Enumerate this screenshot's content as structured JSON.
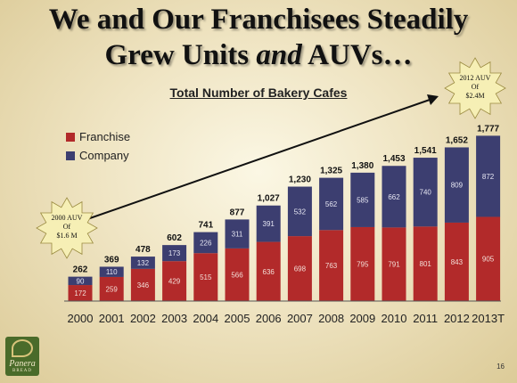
{
  "title_line1": "We and Our Franchisees Steadily",
  "title_line2_a": "Grew Units ",
  "title_line2_b": "and",
  "title_line2_c": " AUVs…",
  "chart_title": "Total Number of Bakery Cafes",
  "page_number": "16",
  "logo": {
    "brand": "Panera",
    "sub": "BREAD"
  },
  "colors": {
    "franchise": "#b22a2a",
    "company": "#3c3e70",
    "starburst": "#f6efb5"
  },
  "chart_data": {
    "type": "bar",
    "stacked": true,
    "title": "Total Number of Bakery Cafes",
    "categories": [
      "2000",
      "2001",
      "2002",
      "2003",
      "2004",
      "2005",
      "2006",
      "2007",
      "2008",
      "2009",
      "2010",
      "2011",
      "2012",
      "2013T"
    ],
    "series": [
      {
        "name": "Franchise",
        "values": [
          172,
          259,
          346,
          429,
          515,
          566,
          636,
          698,
          763,
          795,
          791,
          801,
          843,
          905
        ]
      },
      {
        "name": "Company",
        "values": [
          90,
          110,
          132,
          173,
          226,
          311,
          391,
          532,
          562,
          585,
          662,
          740,
          809,
          872
        ]
      }
    ],
    "totals": [
      "262",
      "369",
      "478",
      "602",
      "741",
      "877",
      "1,027",
      "1,230",
      "1,325",
      "1,380",
      "1,453",
      "1,541",
      "1,652",
      "1,777"
    ],
    "ylim": [
      0,
      1800
    ],
    "legend_position": "top-left",
    "grid": false,
    "annotations": [
      {
        "lines": [
          "2000 AUV",
          "Of",
          "$1.6 M"
        ]
      },
      {
        "lines": [
          "2012 AUV",
          "Of",
          "$2.4M"
        ]
      }
    ]
  }
}
